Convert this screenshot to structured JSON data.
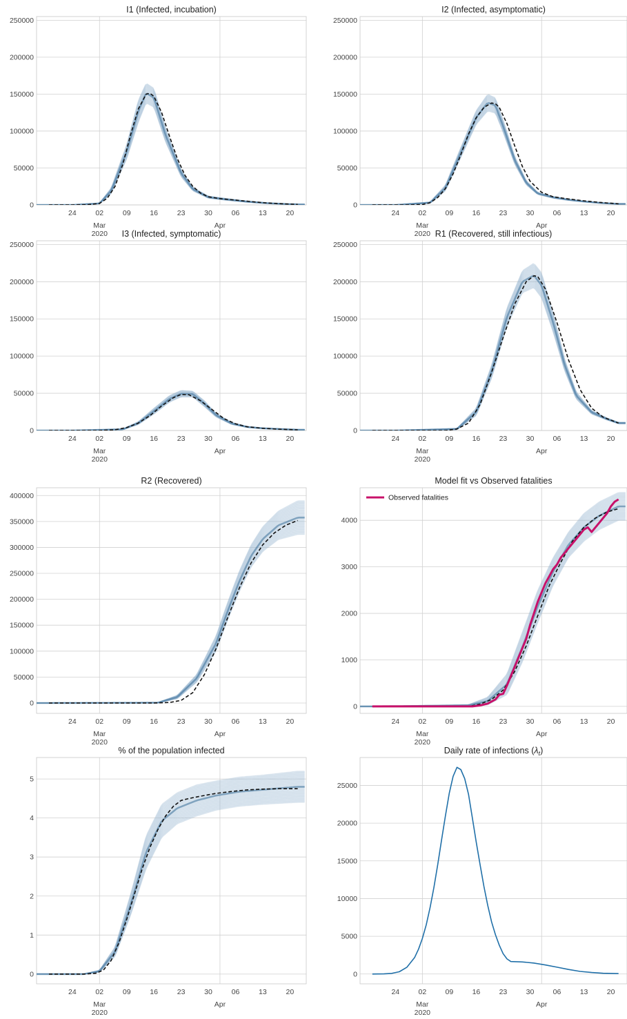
{
  "chart_data": [
    {
      "id": "p1",
      "type": "line",
      "title": "I1 (Infected, incubation)",
      "x_ticks": [
        "24",
        "02",
        "09",
        "16",
        "23",
        "30",
        "06",
        "13",
        "20"
      ],
      "month_labels": [
        {
          "label": "Mar",
          "year": "2020"
        },
        {
          "label": "Apr",
          "year": ""
        }
      ],
      "ylim": [
        0,
        255000
      ],
      "y_ticks": [
        0,
        50000,
        100000,
        150000,
        200000,
        250000
      ],
      "grid": true,
      "bands": [
        {
          "x": [
            -7,
            0,
            3,
            7,
            10,
            12,
            14,
            17,
            21,
            24,
            28,
            33,
            38,
            43,
            48,
            51
          ],
          "low": [
            0,
            1500,
            15000,
            62000,
            112000,
            138000,
            132000,
            85000,
            38000,
            19000,
            9000,
            6000,
            3600,
            1900,
            900,
            500
          ],
          "high": [
            0,
            2500,
            23000,
            82000,
            142000,
            165000,
            158000,
            104000,
            48000,
            24000,
            12000,
            8500,
            5200,
            2900,
            1500,
            900
          ]
        }
      ],
      "series": [
        {
          "style": "dashed",
          "color": "#111111",
          "x": [
            -13,
            -7,
            -3,
            0,
            2,
            4,
            6,
            8,
            10,
            12,
            13,
            14,
            16,
            18,
            20,
            22,
            24,
            26,
            28,
            31,
            34,
            38,
            42,
            46,
            51
          ],
          "values": [
            0,
            0,
            300,
            2000,
            9000,
            25000,
            55000,
            95000,
            130000,
            150000,
            151000,
            147000,
            125000,
            93000,
            63000,
            40000,
            25000,
            16000,
            11000,
            8500,
            7000,
            5000,
            3000,
            1800,
            700
          ]
        }
      ]
    },
    {
      "id": "p2",
      "type": "line",
      "title": "I2 (Infected, asymptomatic)",
      "x_ticks": [
        "24",
        "02",
        "09",
        "16",
        "23",
        "30",
        "06",
        "13",
        "20"
      ],
      "month_labels": [
        {
          "label": "Mar",
          "year": "2020"
        },
        {
          "label": "Apr",
          "year": ""
        }
      ],
      "ylim": [
        0,
        255000
      ],
      "y_ticks": [
        0,
        50000,
        100000,
        150000,
        200000,
        250000
      ],
      "grid": true,
      "bands": [
        {
          "x": [
            -7,
            2,
            6,
            10,
            14,
            17,
            19,
            21,
            24,
            27,
            30,
            34,
            38,
            42,
            47,
            51
          ],
          "low": [
            0,
            2000,
            19000,
            64000,
            109000,
            127000,
            124000,
            98000,
            55000,
            27000,
            14000,
            9000,
            6000,
            4000,
            2000,
            1000
          ],
          "high": [
            0,
            4000,
            27000,
            78000,
            128000,
            150000,
            145000,
            115000,
            66000,
            33000,
            17000,
            11500,
            8000,
            5200,
            2800,
            1700
          ]
        }
      ],
      "series": [
        {
          "style": "dashed",
          "color": "#111111",
          "x": [
            -13,
            -4,
            0,
            2,
            4,
            6,
            8,
            10,
            12,
            14,
            16,
            18,
            19,
            20,
            22,
            24,
            26,
            28,
            31,
            34,
            38,
            42,
            46,
            51
          ],
          "values": [
            0,
            0,
            500,
            3000,
            10000,
            22000,
            42000,
            68000,
            96000,
            118000,
            132000,
            138000,
            137000,
            132000,
            110000,
            80000,
            52000,
            32000,
            17000,
            11000,
            8000,
            5500,
            3500,
            1500
          ]
        }
      ]
    },
    {
      "id": "p3",
      "type": "line",
      "title": "I3 (Infected, symptomatic)",
      "x_ticks": [
        "24",
        "02",
        "09",
        "16",
        "23",
        "30",
        "06",
        "13",
        "20"
      ],
      "month_labels": [
        {
          "label": "Mar",
          "year": "2020"
        },
        {
          "label": "Apr",
          "year": ""
        }
      ],
      "ylim": [
        0,
        255000
      ],
      "y_ticks": [
        0,
        50000,
        100000,
        150000,
        200000,
        250000
      ],
      "grid": true,
      "bands": [
        {
          "x": [
            -7,
            6,
            10,
            14,
            18,
            21,
            24,
            27,
            30,
            34,
            38,
            42,
            47,
            51
          ],
          "low": [
            0,
            1000,
            8000,
            22000,
            38000,
            45000,
            45000,
            32000,
            18000,
            8000,
            4000,
            2500,
            1500,
            800
          ],
          "high": [
            0,
            2200,
            12000,
            30000,
            47000,
            54000,
            53000,
            40000,
            23000,
            11000,
            5500,
            3500,
            2200,
            1300
          ]
        }
      ],
      "series": [
        {
          "style": "dashed",
          "color": "#111111",
          "x": [
            -13,
            0,
            4,
            7,
            10,
            13,
            16,
            19,
            21,
            23,
            26,
            29,
            32,
            35,
            38,
            42,
            46,
            51
          ],
          "values": [
            0,
            0,
            1000,
            4000,
            10000,
            20000,
            33000,
            44000,
            48500,
            48000,
            40000,
            28000,
            16000,
            9000,
            5000,
            3000,
            1800,
            900
          ]
        }
      ]
    },
    {
      "id": "p4",
      "type": "line",
      "title": "R1 (Recovered, still infectious)",
      "x_ticks": [
        "24",
        "02",
        "09",
        "16",
        "23",
        "30",
        "06",
        "13",
        "20"
      ],
      "month_labels": [
        {
          "label": "Mar",
          "year": "2020"
        },
        {
          "label": "Apr",
          "year": ""
        }
      ],
      "ylim": [
        0,
        255000
      ],
      "y_ticks": [
        0,
        50000,
        100000,
        150000,
        200000,
        250000
      ],
      "grid": true,
      "bands": [
        {
          "x": [
            -7,
            9,
            14,
            18,
            22,
            26,
            29,
            31,
            34,
            37,
            40,
            44,
            48,
            51
          ],
          "low": [
            0,
            1000,
            20000,
            70000,
            140000,
            185000,
            192000,
            178000,
            132000,
            80000,
            42000,
            22000,
            14000,
            9000
          ],
          "high": [
            0,
            3000,
            30000,
            88000,
            165000,
            215000,
            225000,
            212000,
            158000,
            96000,
            52000,
            27000,
            17000,
            11000
          ]
        }
      ],
      "series": [
        {
          "style": "dashed",
          "color": "#111111",
          "x": [
            -13,
            6,
            9,
            12,
            15,
            18,
            21,
            24,
            27,
            29,
            30,
            32,
            35,
            38,
            41,
            44,
            47,
            51
          ],
          "values": [
            0,
            0,
            2000,
            10000,
            35000,
            78000,
            125000,
            170000,
            200000,
            208000,
            207000,
            190000,
            145000,
            95000,
            55000,
            30000,
            18000,
            10000
          ]
        }
      ]
    },
    {
      "id": "p5",
      "type": "line",
      "title": "R2 (Recovered)",
      "x_ticks": [
        "24",
        "02",
        "09",
        "16",
        "23",
        "30",
        "06",
        "13",
        "20"
      ],
      "month_labels": [
        {
          "label": "Mar",
          "year": "2020"
        },
        {
          "label": "Apr",
          "year": ""
        }
      ],
      "ylim": [
        -20000,
        415000
      ],
      "y_ticks": [
        0,
        50000,
        100000,
        150000,
        200000,
        250000,
        300000,
        350000,
        400000
      ],
      "grid": true,
      "bands": [
        {
          "x": [
            -13,
            15,
            20,
            25,
            30,
            33,
            36,
            39,
            42,
            46,
            51
          ],
          "low": [
            0,
            0,
            8000,
            40000,
            100000,
            160000,
            215000,
            262000,
            292000,
            315000,
            325000
          ],
          "high": [
            0,
            1000,
            15000,
            55000,
            130000,
            195000,
            255000,
            305000,
            340000,
            370000,
            390000
          ]
        }
      ],
      "series": [
        {
          "style": "dashed",
          "color": "#111111",
          "x": [
            -13,
            14,
            18,
            21,
            24,
            27,
            30,
            33,
            36,
            39,
            42,
            45,
            48,
            51
          ],
          "values": [
            0,
            0,
            1000,
            5000,
            20000,
            55000,
            105000,
            165000,
            222000,
            270000,
            305000,
            328000,
            343000,
            352000
          ]
        }
      ]
    },
    {
      "id": "p6",
      "type": "line",
      "title": "Model fit vs Observed fatalities",
      "x_ticks": [
        "24",
        "02",
        "09",
        "16",
        "23",
        "30",
        "06",
        "13",
        "20"
      ],
      "month_labels": [
        {
          "label": "Mar",
          "year": "2020"
        },
        {
          "label": "Apr",
          "year": ""
        }
      ],
      "ylim": [
        -150,
        4700
      ],
      "y_ticks": [
        0,
        1000,
        2000,
        3000,
        4000
      ],
      "grid": true,
      "legend": {
        "position": "top-left",
        "entries": [
          {
            "name": "Observed fatalities",
            "color": "#c8116a"
          }
        ]
      },
      "bands": [
        {
          "x": [
            -13,
            12,
            17,
            22,
            26,
            30,
            34,
            38,
            42,
            46,
            51
          ],
          "low": [
            0,
            0,
            30,
            250,
            950,
            1800,
            2600,
            3200,
            3550,
            3800,
            4000
          ],
          "high": [
            0,
            40,
            200,
            700,
            1600,
            2500,
            3200,
            3750,
            4150,
            4400,
            4600
          ]
        }
      ],
      "series": [
        {
          "style": "dashed",
          "color": "#111111",
          "x": [
            -13,
            12,
            15,
            18,
            21,
            24,
            27,
            30,
            33,
            36,
            39,
            42,
            45,
            48,
            51
          ],
          "values": [
            0,
            0,
            50,
            150,
            350,
            750,
            1300,
            1950,
            2600,
            3100,
            3550,
            3850,
            4050,
            4180,
            4250
          ]
        },
        {
          "name": "Observed fatalities",
          "style": "solid",
          "color": "#c8116a",
          "x": [
            -13,
            13,
            15,
            17,
            19,
            20,
            21,
            22,
            23,
            24,
            25,
            26,
            27,
            28,
            29,
            30,
            31,
            32,
            33,
            34,
            35,
            36,
            37,
            38,
            39,
            40,
            41,
            42,
            43,
            44,
            45,
            46,
            47,
            48,
            49,
            50,
            51
          ],
          "values": [
            0,
            0,
            20,
            60,
            150,
            250,
            270,
            450,
            650,
            850,
            1050,
            1250,
            1450,
            1750,
            2000,
            2250,
            2450,
            2650,
            2800,
            2950,
            3050,
            3200,
            3300,
            3400,
            3500,
            3600,
            3700,
            3800,
            3850,
            3750,
            3850,
            3950,
            4050,
            4150,
            4300,
            4400,
            4450
          ]
        }
      ]
    },
    {
      "id": "p7",
      "type": "line",
      "title": "% of the population infected",
      "x_ticks": [
        "24",
        "02",
        "09",
        "16",
        "23",
        "30",
        "06",
        "13",
        "20"
      ],
      "month_labels": [
        {
          "label": "Mar",
          "year": "2020"
        },
        {
          "label": "Apr",
          "year": ""
        }
      ],
      "ylim": [
        -0.25,
        5.55
      ],
      "y_ticks": [
        0,
        1,
        2,
        3,
        4,
        5
      ],
      "grid": true,
      "bands": [
        {
          "x": [
            -13,
            -4,
            0,
            4,
            8,
            12,
            16,
            20,
            25,
            30,
            36,
            42,
            51
          ],
          "low": [
            0,
            0,
            0.05,
            0.45,
            1.5,
            2.7,
            3.5,
            3.85,
            4.05,
            4.2,
            4.3,
            4.35,
            4.4
          ],
          "high": [
            0,
            0,
            0.1,
            0.7,
            2.05,
            3.55,
            4.35,
            4.65,
            4.85,
            4.95,
            5.05,
            5.1,
            5.2
          ]
        }
      ],
      "series": [
        {
          "style": "dashed",
          "color": "#111111",
          "x": [
            -13,
            -4,
            -1,
            1,
            3,
            5,
            7,
            9,
            11,
            13,
            15,
            17,
            19,
            21,
            23,
            26,
            30,
            34,
            38,
            42,
            46,
            51
          ],
          "values": [
            0,
            0,
            0.02,
            0.1,
            0.35,
            0.8,
            1.4,
            2.05,
            2.7,
            3.25,
            3.7,
            4.05,
            4.3,
            4.45,
            4.5,
            4.56,
            4.63,
            4.68,
            4.72,
            4.74,
            4.75,
            4.75
          ]
        }
      ]
    },
    {
      "id": "p8",
      "type": "line",
      "title": "Daily rate of infections (λt)",
      "x_ticks": [
        "24",
        "02",
        "09",
        "16",
        "23",
        "30",
        "06",
        "13",
        "20"
      ],
      "month_labels": [
        {
          "label": "Mar",
          "year": "2020"
        },
        {
          "label": "Apr",
          "year": ""
        }
      ],
      "ylim": [
        -1300,
        28700
      ],
      "y_ticks": [
        0,
        5000,
        10000,
        15000,
        20000,
        25000
      ],
      "grid": true,
      "bands": [],
      "series": [
        {
          "style": "solid",
          "color": "#1f6fa8",
          "x": [
            -13,
            -10,
            -8,
            -6,
            -4,
            -2,
            -1,
            0,
            1,
            2,
            3,
            4,
            5,
            6,
            7,
            8,
            9,
            10,
            11,
            12,
            13,
            14,
            15,
            16,
            17,
            18,
            19,
            20,
            21,
            22,
            23,
            26,
            29,
            32,
            35,
            38,
            41,
            44,
            47,
            51
          ],
          "values": [
            0,
            20,
            80,
            300,
            900,
            2200,
            3300,
            4700,
            6500,
            8800,
            11500,
            14500,
            17800,
            21000,
            24000,
            26200,
            27400,
            27100,
            25900,
            23800,
            20700,
            17500,
            14500,
            11600,
            9100,
            6900,
            5200,
            3800,
            2700,
            2000,
            1650,
            1600,
            1450,
            1200,
            900,
            600,
            350,
            200,
            100,
            50
          ]
        }
      ]
    }
  ]
}
